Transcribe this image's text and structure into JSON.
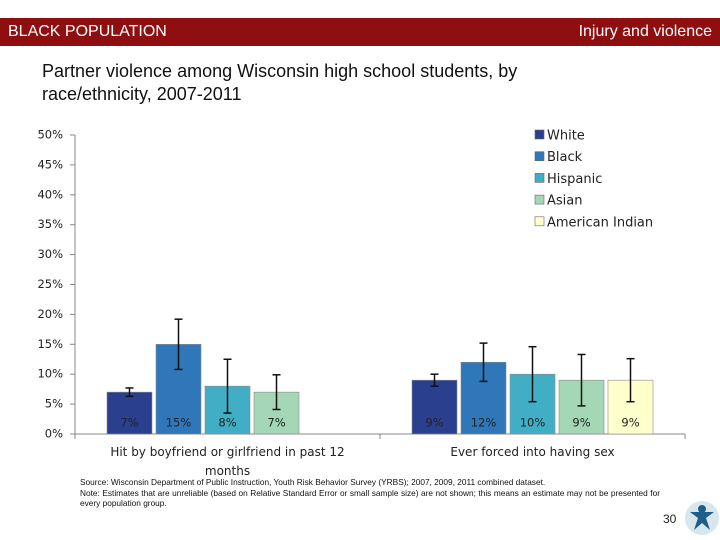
{
  "header": {
    "section": "BLACK POPULATION",
    "topic": "Injury and violence"
  },
  "chart_data": {
    "type": "bar",
    "title": "Partner violence among Wisconsin high school students, by race/ethnicity, 2007-2011",
    "categories": [
      "Hit by boyfriend or girlfriend in past 12 months",
      "Ever forced into having sex"
    ],
    "series": [
      {
        "name": "White",
        "color": "#2b3f8f",
        "values": [
          7,
          9
        ],
        "value_labels": [
          "7%",
          "9%"
        ],
        "errors": [
          0.7,
          1
        ]
      },
      {
        "name": "Black",
        "color": "#2f77b8",
        "values": [
          15,
          12
        ],
        "value_labels": [
          "15%",
          "12%"
        ],
        "errors": [
          4.2,
          3.2
        ]
      },
      {
        "name": "Hispanic",
        "color": "#41aec6",
        "values": [
          8,
          10
        ],
        "value_labels": [
          "8%",
          "10%"
        ],
        "errors": [
          4.5,
          4.6
        ]
      },
      {
        "name": "Asian",
        "color": "#a3d7b5",
        "values": [
          7,
          9
        ],
        "value_labels": [
          "7%",
          "9%"
        ],
        "errors": [
          2.9,
          4.3
        ]
      },
      {
        "name": "American Indian",
        "color": "#ffffcc",
        "values": [
          null,
          9
        ],
        "value_labels": [
          null,
          "9%"
        ],
        "errors": [
          null,
          3.6
        ]
      }
    ],
    "ylim": [
      0,
      50
    ],
    "yticks": [
      {
        "value": 0,
        "label": "0%"
      },
      {
        "value": 5,
        "label": "5%"
      },
      {
        "value": 10,
        "label": "10%"
      },
      {
        "value": 15,
        "label": "15%"
      },
      {
        "value": 20,
        "label": "20%"
      },
      {
        "value": 25,
        "label": "25%"
      },
      {
        "value": 30,
        "label": "30%"
      },
      {
        "value": 35,
        "label": "35%"
      },
      {
        "value": 40,
        "label": "40%"
      },
      {
        "value": 45,
        "label": "45%"
      },
      {
        "value": 50,
        "label": "50%"
      }
    ],
    "grid": false,
    "legend": "top-right"
  },
  "footer": {
    "source": "Source: Wisconsin Department of Public Instruction, Youth Risk Behavior Survey (YRBS); 2007, 2009, 2011 combined dataset.",
    "note": "Note: Estimates that are unreliable (based on Relative Standard Error or small sample size) are not shown; this means an estimate may not be presented for every population group.",
    "page_number": 30
  }
}
